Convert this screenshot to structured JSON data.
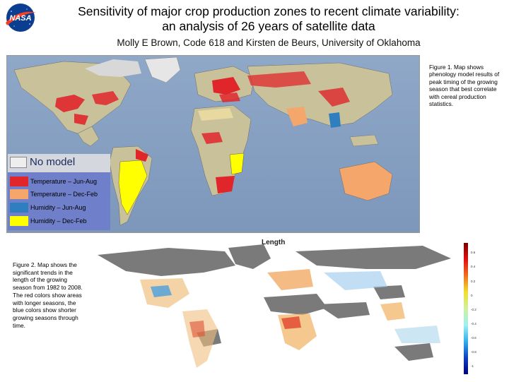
{
  "header": {
    "logo_text": "NASA",
    "title_line1": "Sensitivity of major crop production zones to recent climate variability:",
    "title_line2": "an analysis of 26 years of satellite data",
    "authors": "Molly E Brown, Code 618 and Kirsten de Beurs, University of Oklahoma"
  },
  "figure1": {
    "caption": "Figure 1. Map shows phenology model results of peak timing of the growing season that best correlate with cereal production statistics.",
    "legend": [
      {
        "label": "No model",
        "color": "#eeeeee"
      },
      {
        "label": "Temperature – Jun-Aug",
        "color": "#e0262b"
      },
      {
        "label": "Temperature – Dec-Feb",
        "color": "#f5a66a"
      },
      {
        "label": "Humidity – Jun-Aug",
        "color": "#2f7fc0"
      },
      {
        "label": "Humidity – Dec-Feb",
        "color": "#ffff00"
      }
    ]
  },
  "figure2": {
    "caption": "Figure 2. Map shows the significant trends in the length of the growing season from 1982 to 2008. The red colors show areas with longer seasons, the blue colors show shorter growing seasons through time.",
    "map_title": "Length",
    "colorbar_ticks": [
      "0.6",
      "0.4",
      "0.2",
      "0",
      "-0.2",
      "-0.4",
      "-0.6",
      "-0.8",
      "-1"
    ]
  }
}
